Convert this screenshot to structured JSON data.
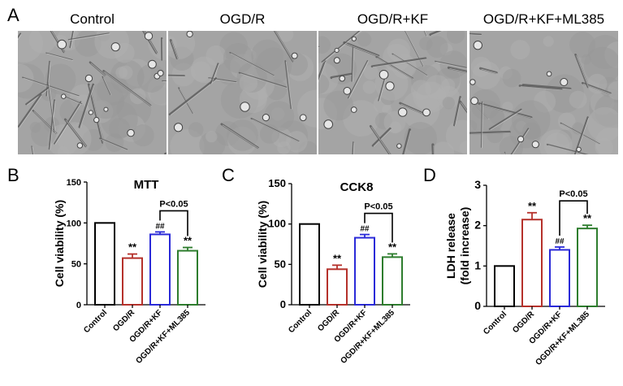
{
  "panel_a": {
    "letter": "A",
    "images": [
      {
        "label": "Control"
      },
      {
        "label": "OGD/R"
      },
      {
        "label": "OGD/R+KF"
      },
      {
        "label": "OGD/R+KF+ML385"
      }
    ]
  },
  "colors": {
    "control": "#000000",
    "ogdr": "#b5312b",
    "ogdr_kf": "#2a2ad8",
    "ogdr_kf_ml385": "#2e7d2e"
  },
  "chart_data": [
    {
      "letter": "B",
      "type": "bar",
      "title": "MTT",
      "xlabel": "",
      "ylabel": "Cell viability (%)",
      "categories": [
        "Control",
        "OGD/R",
        "OGD/R+KF",
        "OGD/R+KF+ML385"
      ],
      "values": [
        100,
        57,
        86,
        66
      ],
      "errors": [
        0,
        5,
        3,
        4
      ],
      "marks": [
        "",
        "**",
        "##",
        "**"
      ],
      "ylim": [
        0,
        150
      ],
      "yticks": [
        "0",
        "50",
        "100",
        "150"
      ],
      "comparison": {
        "from": 2,
        "to": 3,
        "label": "P<0.05"
      },
      "grid": false
    },
    {
      "letter": "C",
      "type": "bar",
      "title": "CCK8",
      "xlabel": "",
      "ylabel": "Cell viability (%)",
      "categories": [
        "Control",
        "OGD/R",
        "OGD/R+KF",
        "OGD/R+KF+ML385"
      ],
      "values": [
        100,
        44,
        83,
        59
      ],
      "errors": [
        0,
        5,
        4,
        4
      ],
      "marks": [
        "",
        "**",
        "##",
        "**"
      ],
      "ylim": [
        0,
        150
      ],
      "yticks": [
        "0",
        "50",
        "100",
        "150"
      ],
      "comparison": {
        "from": 2,
        "to": 3,
        "label": "P<0.05"
      },
      "grid": false
    },
    {
      "letter": "D",
      "type": "bar",
      "title": "",
      "xlabel": "",
      "ylabel": "LDH release",
      "ylabel2": "(fold increase)",
      "categories": [
        "Control",
        "OGD/R",
        "OGD/R+KF",
        "OGD/R+KF+ML385"
      ],
      "values": [
        1.0,
        2.15,
        1.4,
        1.93
      ],
      "errors": [
        0,
        0.17,
        0.07,
        0.08
      ],
      "marks": [
        "",
        "**",
        "##",
        "**"
      ],
      "ylim": [
        0,
        3
      ],
      "yticks": [
        "0",
        "1",
        "2",
        "3"
      ],
      "comparison": {
        "from": 2,
        "to": 3,
        "label": "P<0.05"
      },
      "grid": false
    }
  ]
}
